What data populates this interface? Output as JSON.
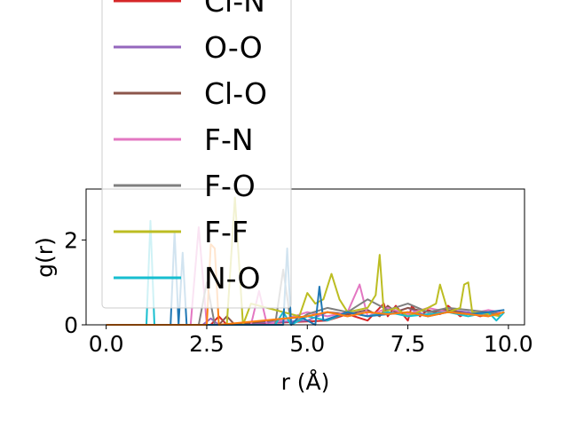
{
  "chart_data": {
    "type": "line",
    "xlabel": "r (Å)",
    "ylabel": "g(r)",
    "xlim": [
      -0.5,
      10.4
    ],
    "ylim": [
      0,
      3.2
    ],
    "xticks": [
      0.0,
      2.5,
      5.0,
      7.5,
      10.0
    ],
    "xtick_labels": [
      "0.0",
      "2.5",
      "5.0",
      "7.5",
      "10.0"
    ],
    "yticks": [
      0,
      2
    ],
    "ytick_labels": [
      "0",
      "2"
    ],
    "grid": false,
    "legend_placement": "upper-left (overflowing above plot)",
    "series": [
      {
        "name": "Cl-N",
        "color": "#d62728",
        "x": [
          0,
          2.6,
          2.8,
          3.0,
          5.5,
          6.0,
          6.5,
          6.9,
          7.0,
          7.2,
          7.5,
          7.6,
          7.8,
          8.0,
          8.3,
          8.5,
          8.8,
          9.0,
          9.3,
          9.5,
          9.8
        ],
        "y": [
          0,
          0,
          0.2,
          0,
          0.1,
          0.25,
          0.1,
          0.5,
          0.2,
          0.45,
          0.1,
          0.45,
          0.2,
          0.35,
          0.25,
          0.45,
          0.2,
          0.3,
          0.2,
          0.25,
          0.3
        ]
      },
      {
        "name": "O-O",
        "color": "#9467bd",
        "x": [
          0,
          2.4,
          2.6,
          2.8,
          5.0,
          5.5,
          6.0,
          6.5,
          7.0,
          7.5,
          8.0,
          8.5,
          9.0,
          9.5,
          9.8
        ],
        "y": [
          0,
          0,
          0.15,
          0,
          0.1,
          0.3,
          0.2,
          0.3,
          0.25,
          0.4,
          0.2,
          0.35,
          0.3,
          0.2,
          0.3
        ]
      },
      {
        "name": "Cl-O",
        "color": "#8c564b",
        "x": [
          0,
          2.8,
          3.0,
          3.2,
          5.0,
          5.5,
          6.0,
          6.5,
          6.8,
          7.0,
          7.2,
          7.5,
          8.0,
          8.5,
          9.0,
          9.5,
          9.8
        ],
        "y": [
          0,
          0,
          0.2,
          0,
          0.2,
          0.3,
          0.25,
          0.35,
          0.2,
          0.45,
          0.3,
          0.4,
          0.3,
          0.35,
          0.25,
          0.3,
          0.2
        ]
      },
      {
        "name": "F-N",
        "color": "#e377c2",
        "x": [
          0,
          2.1,
          2.3,
          2.5,
          3.6,
          3.8,
          4.0,
          5.0,
          5.5,
          6.0,
          6.3,
          6.5,
          7.0,
          7.5,
          8.0,
          8.5,
          9.0,
          9.5,
          9.8
        ],
        "y": [
          0,
          0,
          2.3,
          0,
          0,
          0.8,
          0,
          0.3,
          0.2,
          0.3,
          0.95,
          0.2,
          0.4,
          0.25,
          0.4,
          0.3,
          0.25,
          0.35,
          0.3
        ]
      },
      {
        "name": "F-O",
        "color": "#7f7f7f",
        "x": [
          0,
          2.3,
          2.5,
          2.7,
          4.2,
          4.4,
          4.6,
          5.0,
          5.5,
          6.0,
          6.5,
          7.0,
          7.5,
          8.0,
          8.5,
          9.0,
          9.5,
          9.8
        ],
        "y": [
          0,
          0,
          1.0,
          0,
          0,
          1.3,
          0,
          0.25,
          0.4,
          0.3,
          0.6,
          0.35,
          0.5,
          0.3,
          0.4,
          0.35,
          0.3,
          0.25
        ]
      },
      {
        "name": "F-F",
        "color": "#bcbd22",
        "x": [
          0,
          3.0,
          3.2,
          3.4,
          3.6,
          4.8,
          5.0,
          5.2,
          5.4,
          5.6,
          5.8,
          6.0,
          6.5,
          6.7,
          6.8,
          6.9,
          7.2,
          7.5,
          8.0,
          8.2,
          8.3,
          8.5,
          8.8,
          8.9,
          9.0,
          9.1,
          9.5,
          9.8
        ],
        "y": [
          0,
          0,
          3.0,
          0,
          0.5,
          0.2,
          0.75,
          0.5,
          0.6,
          1.2,
          0.6,
          0.3,
          0.4,
          0.7,
          1.65,
          0.3,
          0.4,
          0.2,
          0.4,
          0.5,
          0.95,
          0.3,
          0.4,
          0.95,
          1.0,
          0.3,
          0.25,
          0.2
        ]
      },
      {
        "name": "N-O",
        "color": "#17becf",
        "x": [
          0,
          1.0,
          1.1,
          1.2,
          4.2,
          4.4,
          4.6,
          5.0,
          5.5,
          6.0,
          6.5,
          7.0,
          7.5,
          8.0,
          8.5,
          9.0,
          9.5,
          9.7,
          9.9
        ],
        "y": [
          0,
          0,
          2.45,
          0,
          0,
          0.3,
          0,
          0.2,
          0.1,
          0.3,
          0.2,
          0.3,
          0.2,
          0.25,
          0.3,
          0.2,
          0.3,
          0.1,
          0.3
        ]
      },
      {
        "name": "",
        "color": "#1f77b4",
        "x": [
          0,
          1.6,
          1.7,
          1.8,
          1.9,
          2.0,
          4.4,
          4.5,
          4.6,
          4.8,
          5.2,
          5.3,
          5.4,
          6.0,
          6.5,
          7.0,
          7.5,
          8.0,
          8.5,
          9.0,
          9.5,
          9.9
        ],
        "y": [
          0,
          0,
          2.2,
          0,
          1.7,
          0,
          0,
          1.8,
          0,
          0.2,
          0,
          0.9,
          0.1,
          0.3,
          0.2,
          0.25,
          0.3,
          0.2,
          0.3,
          0.25,
          0.3,
          0.35
        ]
      },
      {
        "name": "",
        "color": "#ff7f0e",
        "x": [
          0,
          2.5,
          2.6,
          2.7,
          2.8,
          5.0,
          5.5,
          6.0,
          6.5,
          7.0,
          7.5,
          8.0,
          8.5,
          9.0,
          9.5,
          9.9
        ],
        "y": [
          0,
          0,
          1.9,
          1.8,
          0,
          0.2,
          0.3,
          0.2,
          0.3,
          0.25,
          0.3,
          0.2,
          0.3,
          0.25,
          0.2,
          0.3
        ]
      }
    ],
    "legend_entries": [
      {
        "label": "Cl-N",
        "color": "#d62728"
      },
      {
        "label": "O-O",
        "color": "#9467bd"
      },
      {
        "label": "Cl-O",
        "color": "#8c564b"
      },
      {
        "label": "F-N",
        "color": "#e377c2"
      },
      {
        "label": "F-O",
        "color": "#7f7f7f"
      },
      {
        "label": "F-F",
        "color": "#bcbd22"
      },
      {
        "label": "N-O",
        "color": "#17becf"
      }
    ]
  }
}
